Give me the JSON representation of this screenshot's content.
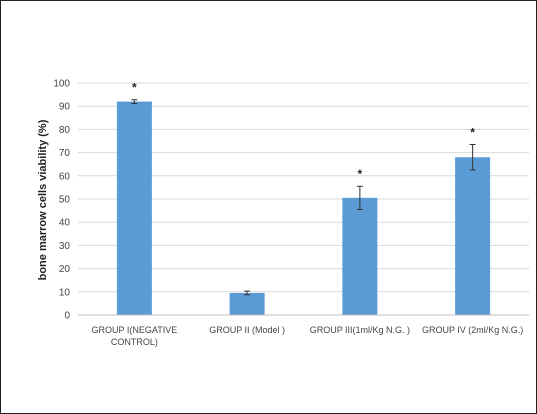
{
  "chart_data": {
    "type": "bar",
    "title": "",
    "xlabel": "",
    "ylabel": "bone marrow cells viability (%)",
    "ylim": [
      0,
      100
    ],
    "yticks": [
      0,
      10,
      20,
      30,
      40,
      50,
      60,
      70,
      80,
      90,
      100
    ],
    "grid": true,
    "categories": [
      [
        "GROUP I(NEGATIVE",
        "CONTROL)"
      ],
      [
        "GROUP II (Model )"
      ],
      [
        "GROUP III(1ml/Kg N.G. )"
      ],
      [
        "GROUP IV (2ml/Kg N.G.)"
      ]
    ],
    "values": [
      92,
      9.5,
      50.5,
      68
    ],
    "errors": [
      0.8,
      0.8,
      5,
      5.5
    ],
    "annotations": [
      "*",
      "",
      "*",
      "*"
    ],
    "bar_color": "#5b9bd5",
    "grid_color": "#d9d9d9"
  }
}
